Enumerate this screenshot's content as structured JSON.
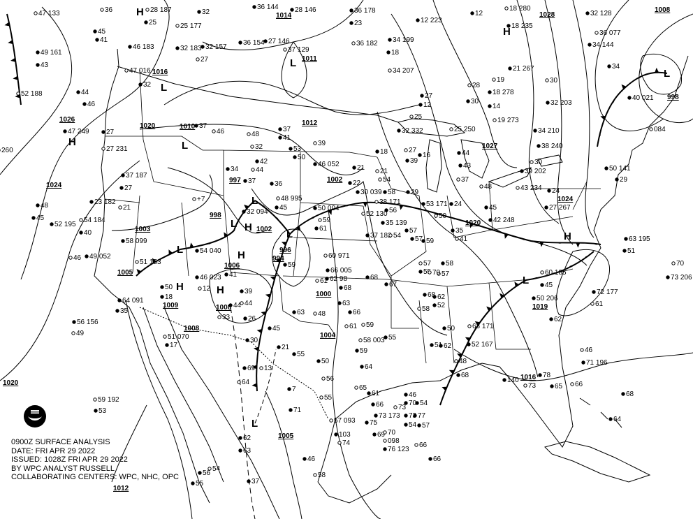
{
  "caption": {
    "title": "0900Z SURFACE ANALYSIS",
    "date": "DATE: FRI APR 29 2022",
    "issued": "ISSUED: 1028Z FRI APR 29 2022",
    "analyst": "BY WPC ANALYST RUSSELL",
    "centers": "COLLABORATING CENTERS: WPC, NHC, OPC"
  },
  "logo": {
    "name": "NOAA",
    "icon": "noaa-logo"
  },
  "pressure_centers": [
    "H",
    "H",
    "H",
    "L",
    "L",
    "L",
    "L",
    "L",
    "H",
    "L",
    "L",
    "H",
    "H",
    "H",
    "L",
    "L",
    "H",
    "L"
  ],
  "isobar_labels": [
    "1014",
    "1011",
    "1028",
    "1008",
    "1026",
    "1020",
    "1016",
    "1010",
    "1012",
    "1024",
    "1002",
    "1003",
    "1002",
    "1005",
    "1006",
    "1009",
    "1008",
    "1008",
    "1000",
    "1004",
    "1020",
    "1027",
    "1024",
    "1019",
    "1016",
    "1005",
    "1012",
    "1020",
    "998",
    "996",
    "994",
    "997",
    "998"
  ],
  "stations": [
    "47 133",
    "49 161",
    "43",
    "52 188",
    "44",
    "46",
    "36",
    "45",
    "41",
    "28 187",
    "25",
    "46 183",
    "47 016",
    "32",
    "32 183",
    "25 177",
    "32 157",
    "32",
    "27",
    "36 144",
    "28 146",
    "1014",
    "36 154",
    "27 146",
    "37 129",
    "36 178",
    "23",
    "36 182",
    "34 199",
    "18",
    "34 207",
    "12 223",
    "12",
    "18 280",
    "18 235",
    "32 128",
    "36 077",
    "34 144",
    "34",
    "30",
    "32 203",
    "40 021",
    "084",
    "50 141",
    "29",
    "260",
    "47 249",
    "27",
    "27 231",
    "37 187",
    "27",
    "21",
    "23 182",
    "52 195",
    "54 184",
    "40",
    "58 099",
    "51 153",
    "54 040",
    "46 023",
    "12",
    "50",
    "18",
    "51 070",
    "17",
    "56 156",
    "49",
    "64 091",
    "35",
    "59 192",
    "53",
    "49 052",
    "46",
    "48",
    "45",
    "48",
    "34",
    "37",
    "48 995",
    "45",
    "50 004",
    "59",
    "61",
    "59",
    "60 971",
    "66 005",
    "68",
    "61",
    "62 98",
    "63",
    "61",
    "59",
    "64",
    "65",
    "66",
    "73 173",
    "57 093",
    "103",
    "75",
    "74",
    "70",
    "73",
    "57",
    "55",
    "68",
    "58",
    "52",
    "57",
    "50",
    "53 171",
    "58",
    "57",
    "62",
    "50",
    "63 171",
    "52 167",
    "51",
    "48",
    "68",
    "140",
    "73",
    "78",
    "65",
    "66",
    "68",
    "64",
    "70",
    "73 206",
    "62",
    "46",
    "71 196",
    "72 177",
    "61",
    "63 195",
    "51",
    "60 185",
    "45",
    "50 206",
    "48",
    "45",
    "42 248",
    "43 234",
    "24",
    "27 267",
    "37",
    "24",
    "35",
    "41",
    "43",
    "44",
    "28",
    "30",
    "21 267",
    "19",
    "18 278",
    "14",
    "19 273",
    "12",
    "27",
    "25 250",
    "34 210",
    "38 240",
    "30",
    "39 202",
    "32 332",
    "27",
    "39",
    "29",
    "25",
    "16",
    "18",
    "21",
    "21",
    "22",
    "38 171",
    "37 182",
    "35 139",
    "54",
    "57",
    "59",
    "54",
    "58",
    "56",
    "52 130",
    "53",
    "50",
    "44",
    "42",
    "37",
    "46",
    "41",
    "37",
    "39",
    "46 052",
    "30 039",
    "32",
    "36",
    "32 094",
    "+7",
    "41",
    "39",
    "44",
    "44",
    "55",
    "48",
    "45",
    "26",
    "33",
    "30",
    "21",
    "13",
    "7",
    "50",
    "56",
    "63",
    "66",
    "58 003",
    "55",
    "67",
    "70",
    "62",
    "68",
    "59",
    "61",
    "69",
    "64",
    "62",
    "63",
    "58",
    "55",
    "56",
    "54",
    "37",
    "46",
    "55",
    "71",
    "69",
    "70",
    "46",
    "54",
    "098",
    "54",
    "77",
    "66",
    "66",
    "76 123",
    "73",
    "57"
  ],
  "colors": {
    "ink": "#000000",
    "background": "#ffffff"
  }
}
